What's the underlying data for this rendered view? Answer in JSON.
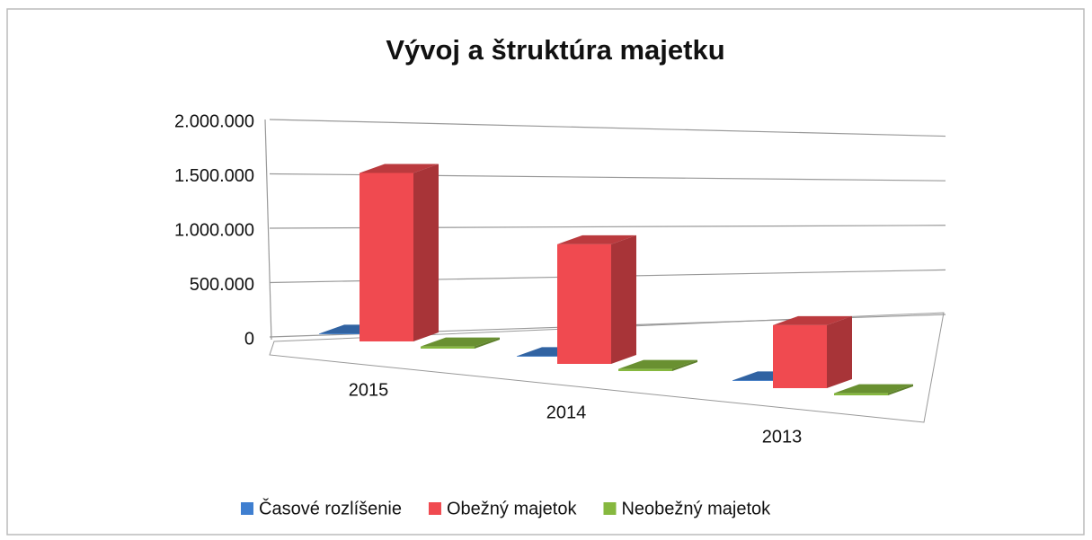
{
  "chart_data": {
    "type": "bar3d",
    "title": "Vývoj a štruktúra majetku",
    "categories": [
      "2015",
      "2014",
      "2013"
    ],
    "series": [
      {
        "name": "Časové rozlíšenie",
        "color": "#3f7fd0",
        "values": [
          5000,
          5000,
          5000
        ]
      },
      {
        "name": "Obežný majetok",
        "color": "#f04a50",
        "values": [
          1550000,
          1100000,
          580000
        ]
      },
      {
        "name": "Neobežný majetok",
        "color": "#86b83f",
        "values": [
          20000,
          20000,
          20000
        ]
      }
    ],
    "ylim": [
      0,
      2000000
    ],
    "yticks": [
      {
        "value": 0,
        "label": "0"
      },
      {
        "value": 500000,
        "label": "500.000"
      },
      {
        "value": 1000000,
        "label": "1.000.000"
      },
      {
        "value": 1500000,
        "label": "1.500.000"
      },
      {
        "value": 2000000,
        "label": "2.000.000"
      }
    ],
    "grid": true,
    "legend": "bottom"
  }
}
